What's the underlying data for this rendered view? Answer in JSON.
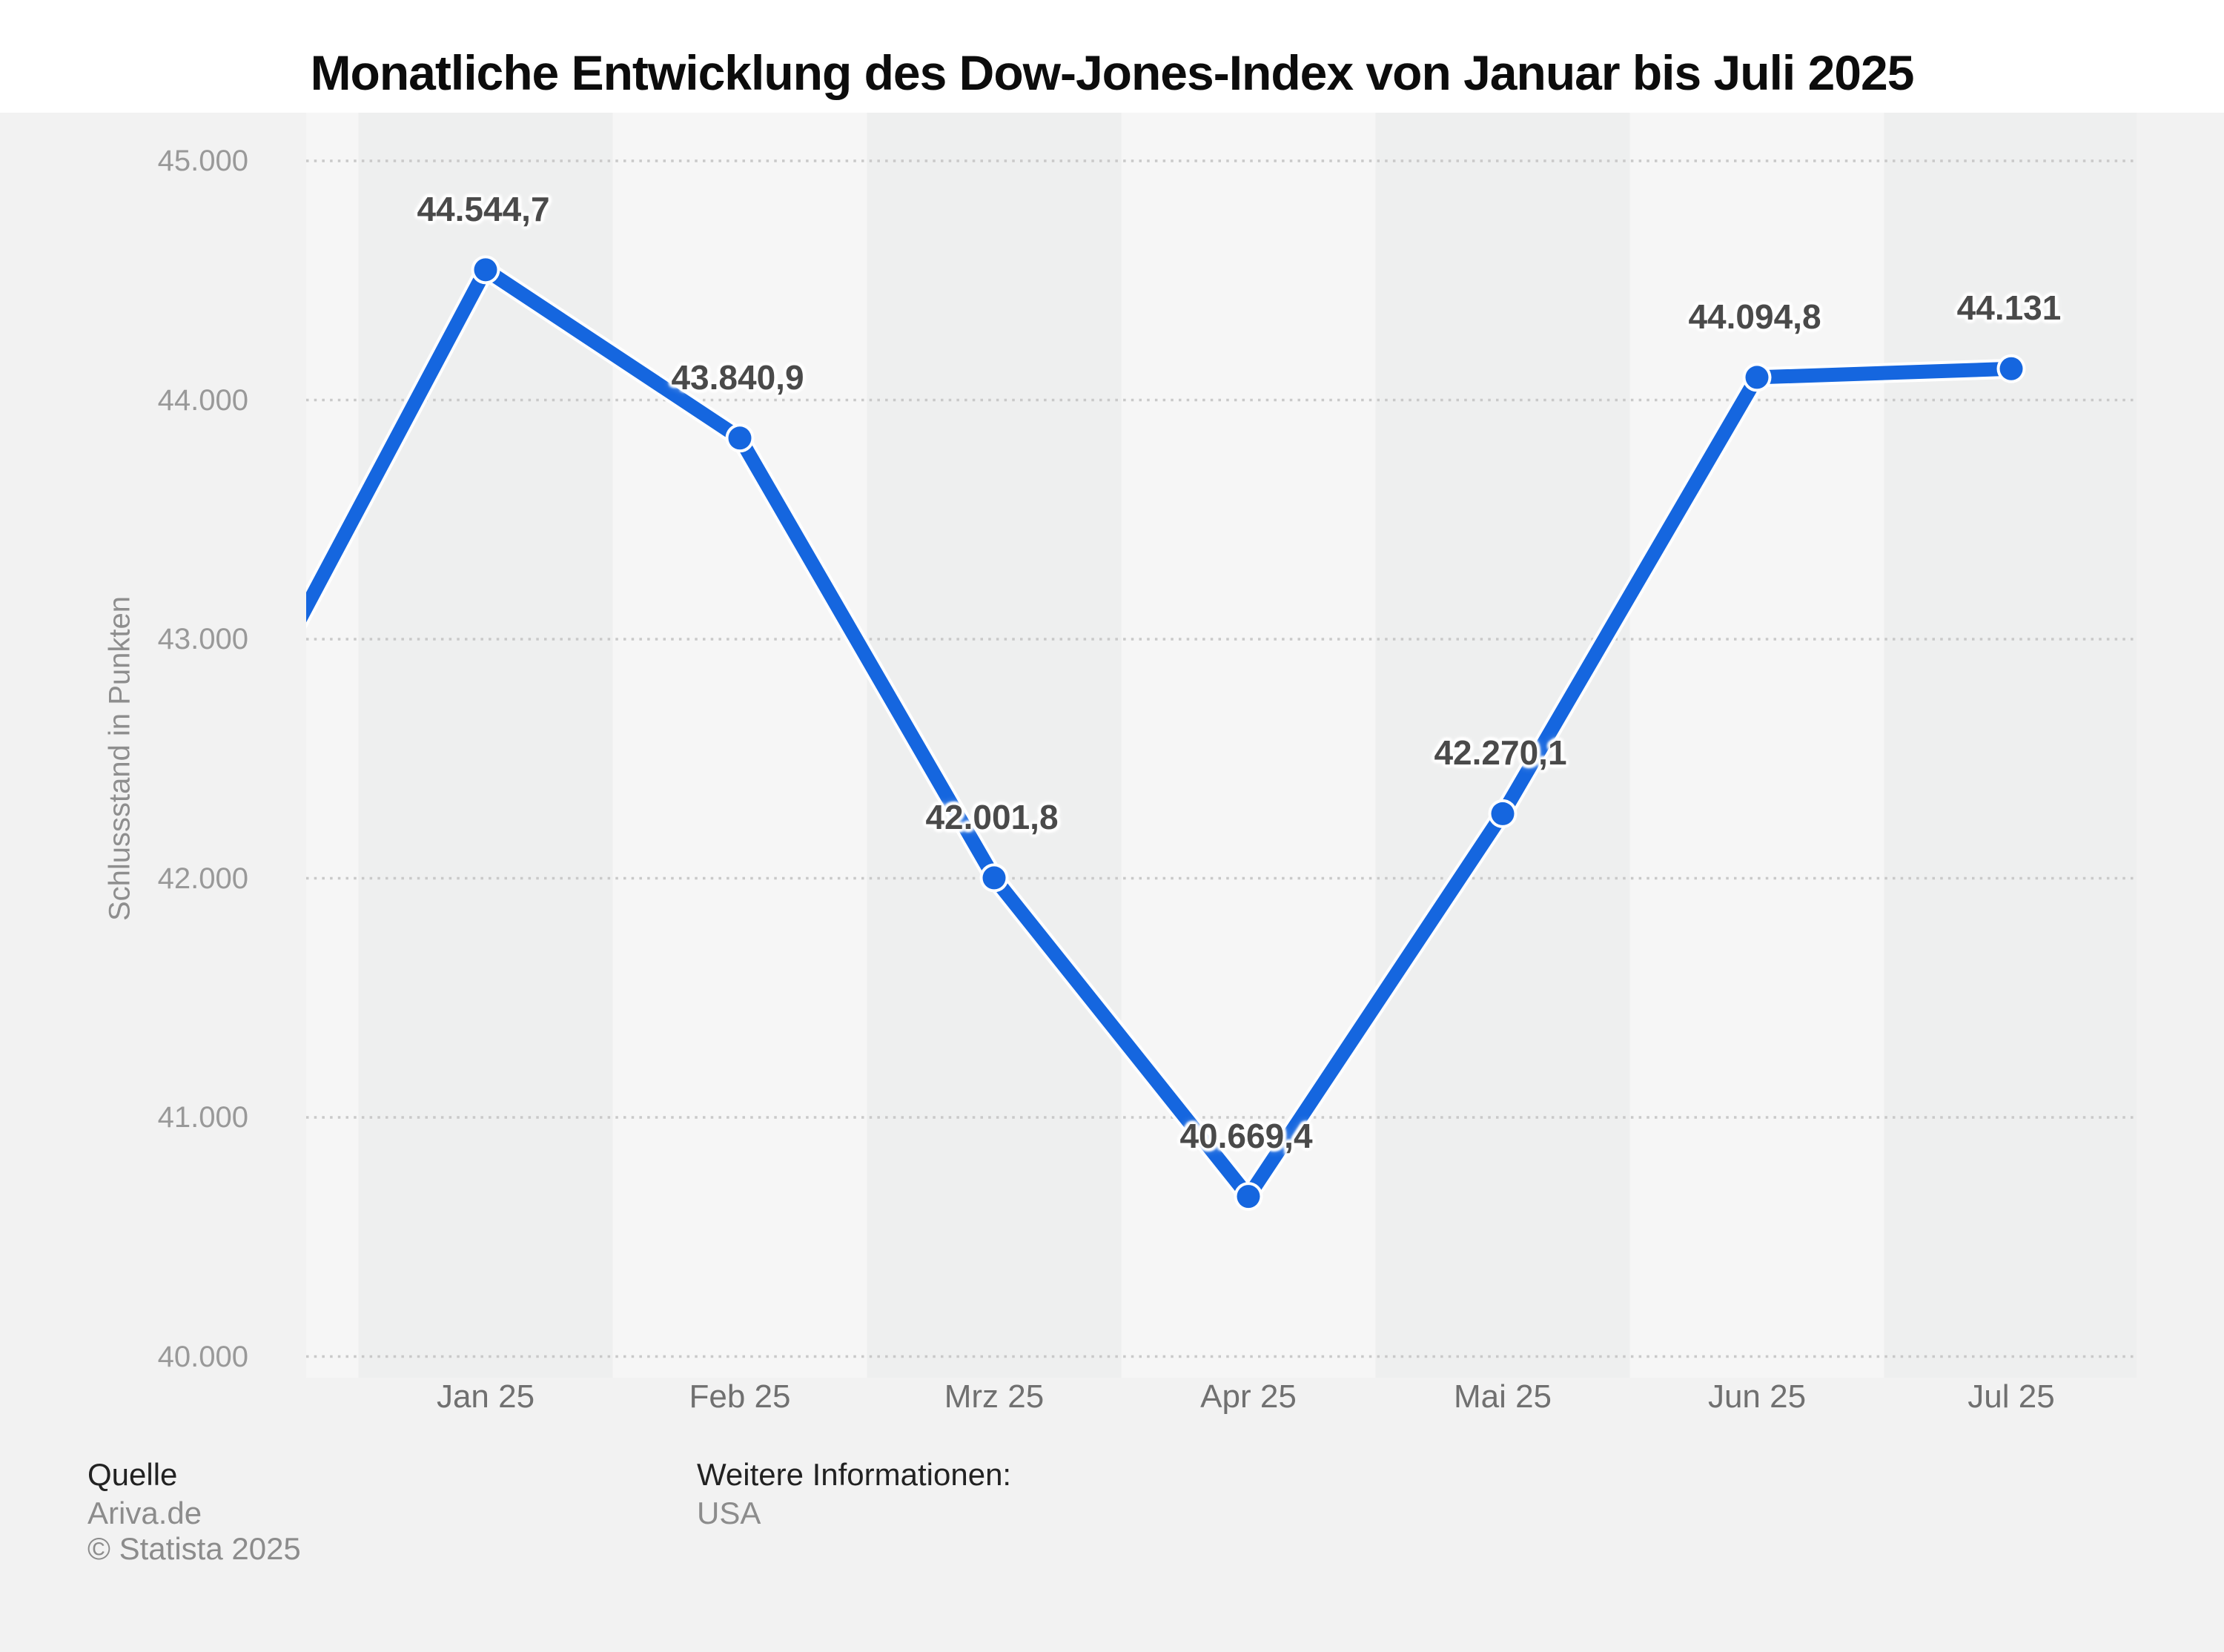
{
  "title": "Monatliche Entwicklung des Dow-Jones-Index von Januar bis Juli 2025",
  "chart_data": {
    "type": "line",
    "title": "Monatliche Entwicklung des Dow-Jones-Index von Januar bis Juli 2025",
    "ylabel": "Schlussstand in Punkten",
    "xlabel": "",
    "categories": [
      "Jan 25",
      "Feb 25",
      "Mrz 25",
      "Apr 25",
      "Mai 25",
      "Jun 25",
      "Jul 25"
    ],
    "values": [
      44544.7,
      43840.9,
      42001.8,
      40669.4,
      42270.1,
      44094.8,
      44131
    ],
    "value_labels": [
      "44.544,7",
      "43.840,9",
      "42.001,8",
      "40.669,4",
      "42.270,1",
      "44.094,8",
      "44.131"
    ],
    "offplot_lead_value_estimate": 42544,
    "ylim": [
      40000,
      45000
    ],
    "yticks": [
      45000,
      44000,
      43000,
      42000,
      41000,
      40000
    ],
    "ytick_labels": [
      "45.000",
      "44.000",
      "43.000",
      "42.000",
      "41.000",
      "40.000"
    ],
    "grid": "horizontal-dotted",
    "legend": "none",
    "band_shaded_months": [
      "Jan 25",
      "Mrz 25",
      "Mai 25",
      "Jul 25"
    ]
  },
  "footer": {
    "source_label": "Quelle",
    "source": "Ariva.de",
    "copyright": "© Statista 2025",
    "info_label": "Weitere Informationen:",
    "info": "USA"
  },
  "colors": {
    "line": "#1566df",
    "marker": "#1566df",
    "halo": "#ffffff",
    "background": "#f2f2f2",
    "header_background": "#ffffff",
    "band_dark": "#eeefef",
    "band_light": "#f6f6f6",
    "gridline": "#c9c9c9",
    "title_text": "#0c0c0c",
    "data_label": "#4a4a4a",
    "ytick_text": "#999999",
    "xtick_text": "#707070",
    "axis_title_text": "#8e8e8e",
    "footer_label_text": "#222222",
    "footer_value_text": "#8c8c8c"
  }
}
